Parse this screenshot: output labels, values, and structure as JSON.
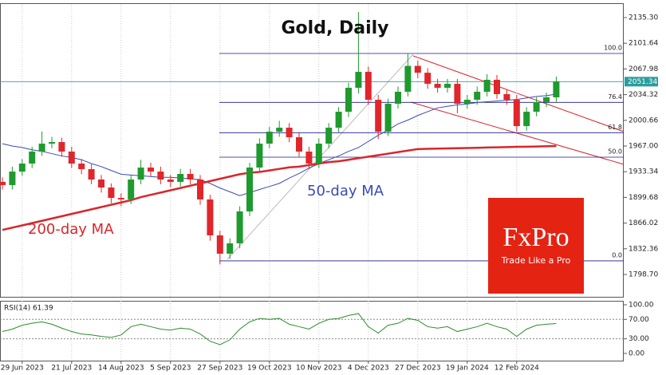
{
  "chart_data": [
    {
      "type": "candlestick",
      "title": "Gold, Daily",
      "categories": [
        null,
        null,
        "29 Jun 2023",
        null,
        null,
        null,
        null,
        "21 Jul 2023",
        null,
        null,
        null,
        null,
        "14 Aug 2023",
        null,
        null,
        null,
        null,
        "5 Sep 2023",
        null,
        null,
        null,
        null,
        "27 Sep 2023",
        null,
        null,
        null,
        null,
        "19 Oct 2023",
        null,
        null,
        null,
        null,
        "10 Nov 2023",
        null,
        null,
        null,
        null,
        "4 Dec 2023",
        null,
        null,
        null,
        null,
        "27 Dec 2023",
        null,
        null,
        null,
        null,
        "19 Jan 2024",
        null,
        null,
        null,
        null,
        "12 Feb 2024",
        null,
        null,
        null,
        null
      ],
      "open": [
        1920.0,
        1915.8,
        1933.5,
        1944.0,
        1959.7,
        1970.1,
        1972.2,
        1959.7,
        1944.0,
        1936.7,
        1923.1,
        1912.6,
        1899.0,
        1897.0,
        1923.1,
        1938.8,
        1933.5,
        1923.1,
        1920.0,
        1930.4,
        1923.1,
        1897.0,
        1849.9,
        1825.9,
        1839.5,
        1881.3,
        1938.8,
        1970.1,
        1985.8,
        1991.0,
        1978.5,
        1959.7,
        1944.0,
        1970.1,
        1991.0,
        2011.9,
        2043.3,
        2064.2,
        2027.6,
        1985.8,
        2022.4,
        2038.1,
        2072.0,
        2063.0,
        2048.5,
        2043.3,
        2048.5,
        2022.4,
        2027.6,
        2038.1,
        2053.8,
        2035.0,
        2027.6,
        1993.1,
        2011.9,
        2024.5,
        2030.8
      ],
      "high": [
        1926,
        1940,
        1950,
        1966,
        1986,
        1979,
        1978,
        1966,
        1950,
        1943,
        1929,
        1918,
        1905,
        1929,
        1949,
        1945,
        1940,
        1929,
        1937,
        1937,
        1929,
        1903,
        1856,
        1846,
        1888,
        1945,
        1977,
        1992,
        2000,
        1997,
        1985,
        1966,
        1977,
        1997,
        2018,
        2050,
        2142.6,
        2071,
        2034,
        2029,
        2045,
        2088,
        2079,
        2069,
        2055,
        2055,
        2055,
        2034,
        2045,
        2061,
        2060,
        2041,
        2034,
        2018,
        2031,
        2037,
        2058
      ],
      "low": [
        1910,
        1910,
        1928,
        1938,
        1954,
        1964,
        1953,
        1938,
        1930,
        1917,
        1906,
        1892,
        1888,
        1891,
        1917,
        1927,
        1917,
        1913,
        1914,
        1917,
        1890,
        1843,
        1812,
        1819,
        1833,
        1875,
        1932,
        1964,
        1979,
        1972,
        1953,
        1937,
        1938,
        1964,
        1985,
        2005,
        2036,
        2021,
        1976,
        1980,
        2016,
        2032,
        2056,
        2042,
        2037,
        2037,
        2010,
        2016,
        2021,
        2032,
        2029,
        2021,
        1986,
        1987,
        2006,
        2018,
        2025
      ],
      "close": [
        1915.8,
        1933.5,
        1944.0,
        1959.7,
        1970.1,
        1972.2,
        1959.7,
        1944.0,
        1936.7,
        1923.1,
        1912.6,
        1899.0,
        1897.0,
        1923.1,
        1938.8,
        1933.5,
        1923.1,
        1920.0,
        1930.4,
        1923.1,
        1897.0,
        1849.9,
        1825.9,
        1839.5,
        1881.3,
        1938.8,
        1970.1,
        1985.8,
        1991.0,
        1978.5,
        1959.7,
        1944.0,
        1970.1,
        1991.0,
        2011.9,
        2043.3,
        2064.2,
        2027.6,
        1985.8,
        2022.4,
        2038.1,
        2072.0,
        2063.0,
        2048.5,
        2043.3,
        2048.5,
        2022.4,
        2027.6,
        2038.1,
        2053.8,
        2035.0,
        2027.6,
        1993.1,
        2011.9,
        2024.5,
        2030.8,
        2051.3
      ],
      "up_color": "#1f9a2e",
      "down_color": "#e0262b",
      "series": [
        {
          "name": "50-day MA",
          "color": "#3b4bb5",
          "values": [
            1970,
            1967,
            1965,
            1962,
            1960,
            1957,
            1954,
            1952,
            1949,
            1944,
            1940,
            1935,
            1930,
            1929,
            1928,
            1927,
            1926,
            1926,
            1925,
            1924,
            1923,
            1918,
            1912,
            1907,
            1902,
            1906,
            1910,
            1914,
            1918,
            1925,
            1931,
            1938,
            1944,
            1949,
            1954,
            1960,
            1965,
            1973,
            1981,
            1988,
            1996,
            2001,
            2007,
            2012,
            2017,
            2019,
            2021,
            2022,
            2024,
            2025,
            2026,
            2027,
            2028,
            2030,
            2032,
            2033,
            2035
          ]
        },
        {
          "name": "200-day MA",
          "color": "#d9262b",
          "values": [
            1857,
            1860,
            1863,
            1866,
            1869,
            1872,
            1875,
            1878,
            1881,
            1884,
            1887,
            1890,
            1893,
            1896,
            1900,
            1903,
            1906,
            1909,
            1912,
            1915,
            1918,
            1921,
            1924,
            1927,
            1930,
            1932,
            1933,
            1935,
            1937,
            1939,
            1940,
            1942,
            1944,
            1946,
            1947,
            1949,
            1951,
            1953,
            1955,
            1957,
            1959,
            1961,
            1963,
            1963.3,
            1963.6,
            1963.9,
            1964.1,
            1964.4,
            1964.7,
            1965,
            1965.3,
            1965.6,
            1965.9,
            1966.1,
            1966.4,
            1966.7,
            1967
          ]
        }
      ],
      "current_price": 2051.34,
      "fib_range": [
        1816.5,
        2088.3
      ],
      "fib_levels": [
        {
          "value": 100,
          "label": "100.0"
        },
        76.4,
        61.8,
        {
          "value": 50,
          "label": "50.0"
        },
        {
          "value": 0,
          "label": "0.0"
        }
      ],
      "ylim": [
        1769.4,
        2153.1
      ],
      "yticks": [
        {
          "value": 2135.3,
          "label": "2135.30"
        },
        2101.64,
        2067.98,
        2034.32,
        2000.66,
        {
          "value": 1967,
          "label": "1967.00"
        },
        1933.34,
        1899.68,
        1866.02,
        1832.36,
        {
          "value": 1798.7,
          "label": "1798.70"
        }
      ]
    },
    {
      "type": "line",
      "title": "RSI(14) 61.39",
      "color": "#2e8b2e",
      "values": [
        45,
        50,
        58,
        62,
        65,
        60,
        52,
        45,
        40,
        38,
        35,
        33,
        38,
        55,
        60,
        55,
        50,
        48,
        52,
        50,
        40,
        25,
        18,
        28,
        50,
        65,
        72,
        70,
        72,
        60,
        55,
        50,
        62,
        70,
        72,
        78,
        82,
        55,
        42,
        58,
        62,
        72,
        68,
        55,
        52,
        55,
        45,
        50,
        55,
        62,
        55,
        50,
        35,
        50,
        58,
        60,
        61.39
      ],
      "levels": [
        70,
        30
      ],
      "ylim": [
        -14.8,
        108.2
      ],
      "yticks": [
        {
          "value": 100,
          "label": "100.00"
        },
        {
          "value": 70,
          "label": "70.00"
        },
        {
          "value": 30,
          "label": "30.00"
        },
        {
          "value": 0,
          "label": "0.00"
        }
      ]
    }
  ],
  "logo": {
    "name": "FxPro",
    "tagline": "Trade Like a Pro"
  }
}
